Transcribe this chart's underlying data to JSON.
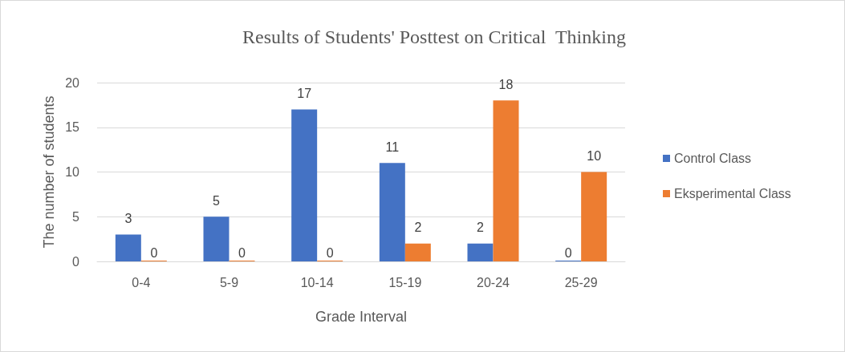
{
  "chart_data": {
    "type": "bar",
    "title": "Results of Students' Posttest on Critical  Thinking",
    "xlabel": "Grade Interval",
    "ylabel": "The number of students",
    "categories": [
      "0-4",
      "5-9",
      "10-14",
      "15-19",
      "20-24",
      "25-29"
    ],
    "series": [
      {
        "name": "Control Class",
        "color": "#4472c4",
        "values": [
          3,
          5,
          17,
          11,
          2,
          0
        ]
      },
      {
        "name": "Eksperimental Class",
        "color": "#ed7d31",
        "values": [
          0,
          0,
          0,
          2,
          18,
          10
        ]
      }
    ],
    "ylim": [
      0,
      20
    ],
    "yticks": [
      0,
      5,
      10,
      15,
      20
    ],
    "grid": "y",
    "legend": "right",
    "data_labels": true
  }
}
